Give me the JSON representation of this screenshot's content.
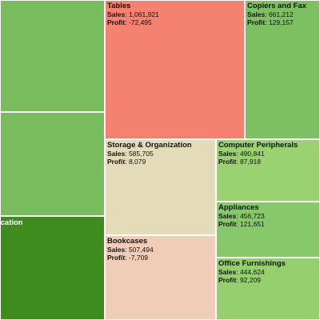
{
  "chart_data": {
    "type": "treemap",
    "metric_labels": {
      "size": "Sales",
      "color": "Profit"
    },
    "color_scale": {
      "negative": "#f58170",
      "neutral": "#e4dcb9",
      "positive": "#4a8f1d"
    },
    "items": [
      {
        "name": "",
        "sales": null,
        "profit": null,
        "color": "#79bc5e",
        "dark": false
      },
      {
        "name": "",
        "sales": null,
        "profit": null,
        "color": "#79bc5e",
        "dark": false
      },
      {
        "name": "ication",
        "sales": null,
        "profit": null,
        "color": "#3f8c1e",
        "dark": true
      },
      {
        "name": "Tables",
        "sales": "1,061,921",
        "profit": "-72,495",
        "color": "#f58170",
        "dark": false
      },
      {
        "name": "Copiers and Fax",
        "sales": "661,212",
        "profit": "129,157",
        "color": "#7cc062",
        "dark": false
      },
      {
        "name": "Storage & Organization",
        "sales": "585,705",
        "profit": "8,079",
        "color": "#e4dcb9",
        "dark": false
      },
      {
        "name": "Computer Peripherals",
        "sales": "490,841",
        "profit": "87,918",
        "color": "#9ad26f",
        "dark": false
      },
      {
        "name": "Appliances",
        "sales": "456,723",
        "profit": "121,651",
        "color": "#86c86a",
        "dark": false
      },
      {
        "name": "Bookcases",
        "sales": "507,494",
        "profit": "-7,709",
        "color": "#f0cdb7",
        "dark": false
      },
      {
        "name": "Office Furnishings",
        "sales": "444,624",
        "profit": "92,209",
        "color": "#96d06e",
        "dark": false
      }
    ]
  }
}
